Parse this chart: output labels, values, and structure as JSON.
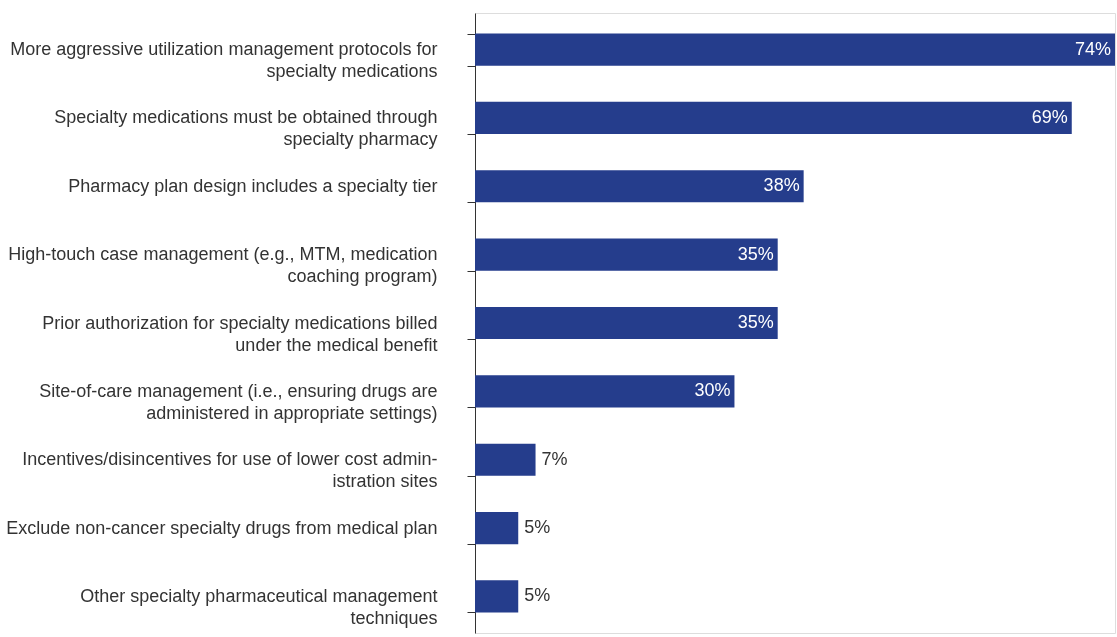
{
  "chart_data": {
    "type": "bar",
    "orientation": "horizontal",
    "categories": [
      "More aggressive utilization management protocols for\nspecialty medications",
      "Specialty medications must be obtained through\nspecialty pharmacy",
      "Pharmacy plan design includes a specialty tier",
      "High-touch case management (e.g., MTM, medication\ncoaching program)",
      "Prior authorization for specialty medications billed\nunder the medical benefit",
      "Site-of-care management (i.e., ensuring drugs are\nadministered in appropriate settings)",
      "Incentives/disincentives for use of lower cost admin-\nistration sites",
      "Exclude non-cancer specialty drugs from medical plan",
      "Other specialty pharmaceutical management\ntechniques"
    ],
    "values": [
      74,
      69,
      38,
      35,
      35,
      30,
      7,
      5,
      5
    ],
    "value_labels": [
      "74%",
      "69%",
      "38%",
      "35%",
      "35%",
      "30%",
      "7%",
      "5%",
      "5%"
    ],
    "color": "#253d8c"
  }
}
